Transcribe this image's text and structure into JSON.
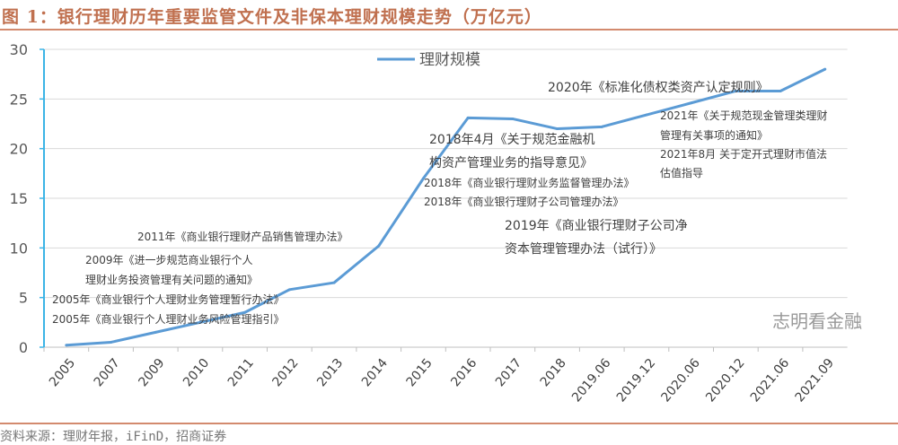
{
  "title": "图 1：银行理财历年重要监管文件及非保本理财规模走势（万亿元）",
  "source": "资料来源：理财年报，iFinD，招商证券",
  "watermark": "志明看金融",
  "chart_data": {
    "type": "line",
    "categories": [
      "2005",
      "2007",
      "2009",
      "2010",
      "2011",
      "2012",
      "2013",
      "2014",
      "2015",
      "2016",
      "2017",
      "2018",
      "2019.06",
      "2019.12",
      "2020.06",
      "2020.12",
      "2021.06",
      "2021.09"
    ],
    "series": [
      {
        "name": "理财规模",
        "color": "#5b9bd5",
        "values": [
          0.2,
          0.5,
          1.5,
          2.5,
          3.5,
          5.8,
          6.5,
          10.2,
          17.0,
          23.1,
          23.0,
          22.0,
          22.2,
          23.4,
          24.6,
          25.8,
          25.8,
          28.0
        ]
      }
    ],
    "ylim": [
      0,
      30
    ],
    "yticks": [
      0,
      5,
      10,
      15,
      20,
      25,
      30
    ],
    "grid": true,
    "legend": "top-center",
    "annotations": [
      {
        "text": "2005年《商业银行个人理财业务管理暂行办法》",
        "size": "small"
      },
      {
        "text": "2005年《商业银行个人理财业务风险管理指引》",
        "size": "small"
      },
      {
        "text": "2009年《进一步规范商业银行个人",
        "size": "small"
      },
      {
        "text": "理财业务投资管理有关问题的通知》",
        "size": "small"
      },
      {
        "text": "2011年《商业银行理财产品销售管理办法》",
        "size": "small"
      },
      {
        "text": "2018年4月《关于规范金融机",
        "size": "big"
      },
      {
        "text": "构资产管理业务的指导意见》",
        "size": "big"
      },
      {
        "text": "2018年《商业银行理财业务监督管理办法》",
        "size": "small"
      },
      {
        "text": "2018年《商业银行理财子公司管理办法》",
        "size": "small"
      },
      {
        "text": "2019年《商业银行理财子公司净",
        "size": "big"
      },
      {
        "text": "资本管理管理办法（试行）》",
        "size": "big"
      },
      {
        "text": "2020年《标准化债权类资产认定规则》",
        "size": "big"
      },
      {
        "text": "2021年《关于规范现金管理类理财",
        "size": "small"
      },
      {
        "text": "管理有关事项的通知》",
        "size": "small"
      },
      {
        "text": "2021年8月 关于定开式理财市值法",
        "size": "small"
      },
      {
        "text": "估值指导",
        "size": "small"
      }
    ]
  }
}
